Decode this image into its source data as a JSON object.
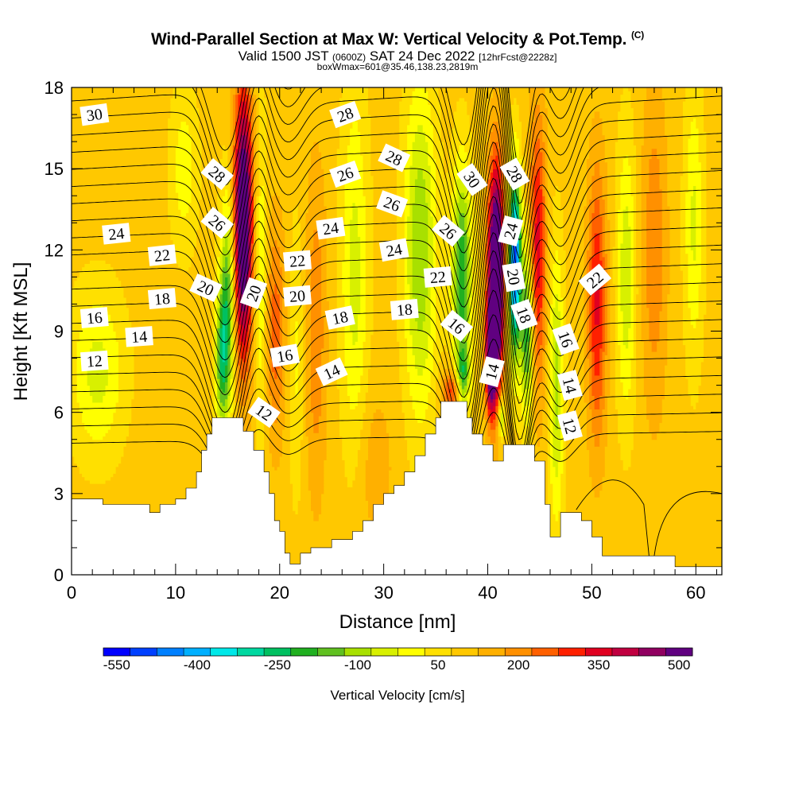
{
  "title": {
    "main": "Wind-Parallel Section at Max W: Vertical Velocity & Pot.Temp.",
    "copyright": "(C)",
    "valid_prefix": "Valid 1500 JST",
    "valid_zulu": "(0600Z)",
    "valid_date": "SAT 24 Dec 2022",
    "forecast": "[12hrFcst@2228z]",
    "box": "boxWmax=601@35.46,138.23,2819m"
  },
  "chart_data": {
    "type": "heatmap",
    "xlabel": "Distance [nm]",
    "ylabel": "Height [Kft MSL]",
    "xlim": [
      0,
      62.5
    ],
    "ylim": [
      0,
      18
    ],
    "xticks": [
      0,
      10,
      20,
      30,
      40,
      50,
      60
    ],
    "yticks": [
      0,
      3,
      6,
      9,
      12,
      15,
      18
    ],
    "colorbar": {
      "label": "Vertical Velocity [cm/s]",
      "tick_labels": [
        "-550",
        "-400",
        "-250",
        "-100",
        "50",
        "200",
        "350",
        "500"
      ],
      "colors": [
        "#0000ff",
        "#0040ff",
        "#0080ff",
        "#00b0ff",
        "#00e8e8",
        "#00d8a0",
        "#00c060",
        "#20b020",
        "#60c020",
        "#a8e000",
        "#d8f000",
        "#ffff00",
        "#ffe000",
        "#ffc800",
        "#ffb000",
        "#ff9000",
        "#ff6000",
        "#ff2000",
        "#e00020",
        "#c00040",
        "#900060",
        "#600080"
      ]
    },
    "terrain": [
      [
        0,
        2.8
      ],
      [
        3,
        2.8
      ],
      [
        3,
        2.6
      ],
      [
        7.5,
        2.6
      ],
      [
        7.5,
        2.3
      ],
      [
        8.5,
        2.3
      ],
      [
        8.5,
        2.6
      ],
      [
        10,
        2.6
      ],
      [
        10,
        2.8
      ],
      [
        11,
        2.8
      ],
      [
        11,
        3.2
      ],
      [
        12,
        3.2
      ],
      [
        12,
        3.8
      ],
      [
        12.5,
        3.8
      ],
      [
        12.5,
        4.6
      ],
      [
        13,
        4.6
      ],
      [
        13,
        5.2
      ],
      [
        13.5,
        5.2
      ],
      [
        13.5,
        5.8
      ],
      [
        16.5,
        5.8
      ],
      [
        16.5,
        5.3
      ],
      [
        17.5,
        5.3
      ],
      [
        17.5,
        4.6
      ],
      [
        18.5,
        4.6
      ],
      [
        18.5,
        3.8
      ],
      [
        19,
        3.8
      ],
      [
        19,
        3.0
      ],
      [
        19.5,
        3.0
      ],
      [
        19.5,
        2.0
      ],
      [
        20,
        2.0
      ],
      [
        20,
        1.6
      ],
      [
        20.5,
        1.6
      ],
      [
        20.5,
        1.2
      ],
      [
        20.5,
        0.8
      ],
      [
        21,
        0.8
      ],
      [
        21,
        0.4
      ],
      [
        22,
        0.4
      ],
      [
        22,
        0.8
      ],
      [
        23,
        0.8
      ],
      [
        23,
        1.0
      ],
      [
        25,
        1.0
      ],
      [
        25,
        1.3
      ],
      [
        27,
        1.3
      ],
      [
        27,
        1.6
      ],
      [
        28,
        1.6
      ],
      [
        28,
        2.0
      ],
      [
        29,
        2.0
      ],
      [
        29,
        2.6
      ],
      [
        30,
        2.6
      ],
      [
        30,
        3.0
      ],
      [
        31,
        3.0
      ],
      [
        31,
        3.3
      ],
      [
        32,
        3.3
      ],
      [
        32,
        3.8
      ],
      [
        33,
        3.8
      ],
      [
        33,
        4.4
      ],
      [
        34,
        4.4
      ],
      [
        34,
        5.2
      ],
      [
        35,
        5.2
      ],
      [
        35,
        5.8
      ],
      [
        35.5,
        5.8
      ],
      [
        35.5,
        6.4
      ],
      [
        38,
        6.4
      ],
      [
        38,
        5.8
      ],
      [
        38.5,
        5.8
      ],
      [
        38.5,
        5.2
      ],
      [
        39.5,
        5.2
      ],
      [
        39.5,
        4.8
      ],
      [
        40.5,
        4.8
      ],
      [
        40.5,
        4.2
      ],
      [
        41.5,
        4.2
      ],
      [
        41.5,
        4.8
      ],
      [
        44.5,
        4.8
      ],
      [
        44.5,
        4.2
      ],
      [
        45.5,
        4.2
      ],
      [
        45.5,
        2.6
      ],
      [
        46,
        2.6
      ],
      [
        46,
        1.4
      ],
      [
        47,
        1.4
      ],
      [
        47,
        2.3
      ],
      [
        49,
        2.3
      ],
      [
        49,
        2.0
      ],
      [
        50,
        2.0
      ],
      [
        50,
        1.4
      ],
      [
        51,
        1.4
      ],
      [
        51,
        0.7
      ],
      [
        58,
        0.7
      ],
      [
        58,
        0.3
      ],
      [
        62.5,
        0.3
      ],
      [
        62.5,
        0
      ],
      [
        0,
        0
      ]
    ],
    "contour_labels": [
      {
        "text": "30",
        "x": 2.2,
        "y": 17.0,
        "angle": -8
      },
      {
        "text": "28",
        "x": 14.0,
        "y": 14.8,
        "angle": 40
      },
      {
        "text": "26",
        "x": 14.0,
        "y": 13.0,
        "angle": 40
      },
      {
        "text": "24",
        "x": 4.3,
        "y": 12.6,
        "angle": -6
      },
      {
        "text": "22",
        "x": 8.7,
        "y": 11.8,
        "angle": -6
      },
      {
        "text": "20",
        "x": 12.9,
        "y": 10.6,
        "angle": 25
      },
      {
        "text": "18",
        "x": 8.7,
        "y": 10.2,
        "angle": -5
      },
      {
        "text": "16",
        "x": 2.2,
        "y": 9.5,
        "angle": -5
      },
      {
        "text": "14",
        "x": 6.5,
        "y": 8.8,
        "angle": -4
      },
      {
        "text": "12",
        "x": 2.2,
        "y": 7.9,
        "angle": -4
      },
      {
        "text": "20",
        "x": 17.5,
        "y": 10.4,
        "angle": -70
      },
      {
        "text": "12",
        "x": 18.5,
        "y": 6.0,
        "angle": 35
      },
      {
        "text": "16",
        "x": 20.5,
        "y": 8.1,
        "angle": -10
      },
      {
        "text": "20",
        "x": 21.7,
        "y": 10.3,
        "angle": -5
      },
      {
        "text": "22",
        "x": 21.7,
        "y": 11.6,
        "angle": -5
      },
      {
        "text": "24",
        "x": 24.9,
        "y": 12.8,
        "angle": -8
      },
      {
        "text": "26",
        "x": 26.3,
        "y": 14.8,
        "angle": -20
      },
      {
        "text": "28",
        "x": 26.3,
        "y": 17.0,
        "angle": -20
      },
      {
        "text": "28",
        "x": 31.0,
        "y": 15.4,
        "angle": 25
      },
      {
        "text": "26",
        "x": 30.8,
        "y": 13.7,
        "angle": 20
      },
      {
        "text": "24",
        "x": 31.0,
        "y": 12.0,
        "angle": -10
      },
      {
        "text": "18",
        "x": 25.8,
        "y": 9.5,
        "angle": -12
      },
      {
        "text": "14",
        "x": 25.0,
        "y": 7.5,
        "angle": -25
      },
      {
        "text": "18",
        "x": 32.0,
        "y": 9.8,
        "angle": -5
      },
      {
        "text": "22",
        "x": 35.2,
        "y": 11.0,
        "angle": -5
      },
      {
        "text": "26",
        "x": 36.2,
        "y": 12.7,
        "angle": 40
      },
      {
        "text": "16",
        "x": 37.0,
        "y": 9.2,
        "angle": 40
      },
      {
        "text": "30",
        "x": 38.5,
        "y": 14.6,
        "angle": 55
      },
      {
        "text": "28",
        "x": 42.6,
        "y": 14.8,
        "angle": 60
      },
      {
        "text": "24",
        "x": 42.2,
        "y": 12.7,
        "angle": -75
      },
      {
        "text": "20",
        "x": 42.5,
        "y": 11.0,
        "angle": 80
      },
      {
        "text": "18",
        "x": 43.5,
        "y": 9.6,
        "angle": 70
      },
      {
        "text": "14",
        "x": 40.4,
        "y": 7.5,
        "angle": -75
      },
      {
        "text": "16",
        "x": 47.5,
        "y": 8.7,
        "angle": 70
      },
      {
        "text": "14",
        "x": 47.9,
        "y": 7.0,
        "angle": 75
      },
      {
        "text": "12",
        "x": 47.9,
        "y": 5.5,
        "angle": 75
      },
      {
        "text": "22",
        "x": 50.3,
        "y": 10.9,
        "angle": -40
      }
    ]
  }
}
